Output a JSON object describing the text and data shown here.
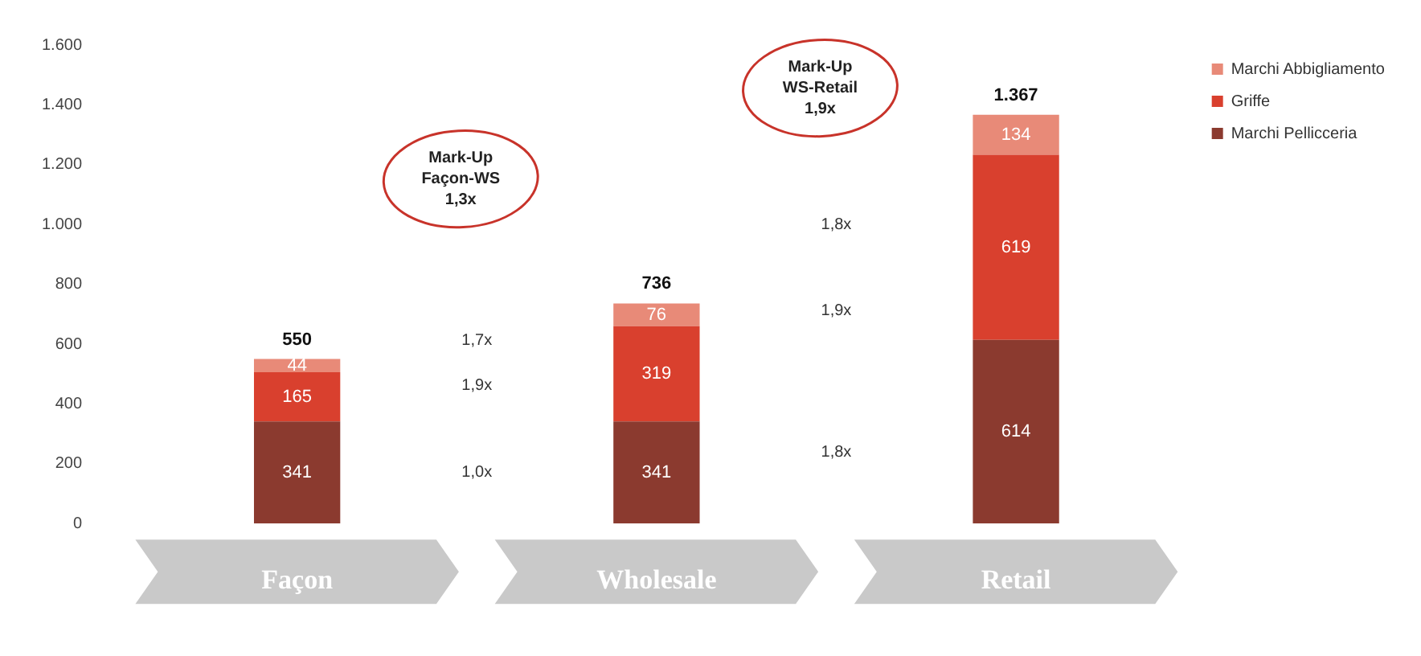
{
  "chart_data": {
    "type": "bar",
    "stacked": true,
    "categories": [
      "Façon",
      "Wholesale",
      "Retail"
    ],
    "series": [
      {
        "name": "Marchi Pellicceria",
        "color": "#8b3a2f",
        "values": [
          341,
          341,
          614
        ]
      },
      {
        "name": "Griffe",
        "color": "#d9402e",
        "values": [
          165,
          319,
          619
        ]
      },
      {
        "name": "Marchi Abbigliamento",
        "color": "#e88a78",
        "values": [
          44,
          76,
          134
        ]
      }
    ],
    "ylim": [
      0,
      1600
    ],
    "yticks": [
      0,
      200,
      400,
      600,
      800,
      {
        "value": 1000,
        "label": "1.000"
      },
      {
        "value": 1200,
        "label": "1.200"
      },
      {
        "value": 1400,
        "label": "1.400"
      },
      {
        "value": 1600,
        "label": "1.600"
      }
    ],
    "data_labels": true,
    "totals": [
      "550",
      "736",
      "1.367"
    ],
    "annotations": [
      "Mark-Up\nFaçon-WS\n1,3x",
      "1,0x",
      "1,9x",
      "1,7x",
      "Mark-Up\nWS-Retail\n1,9x",
      "1,8x",
      "1,9x",
      "1,8x"
    ],
    "grid": false,
    "legend": "top right"
  }
}
